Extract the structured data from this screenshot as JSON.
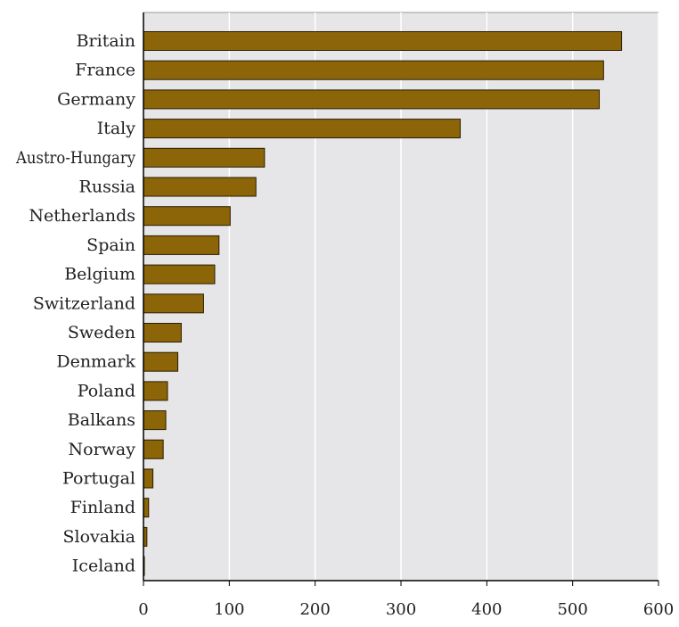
{
  "chart_data": {
    "type": "bar",
    "orientation": "horizontal",
    "categories": [
      "Britain",
      "France",
      "Germany",
      "Italy",
      "Austro-Hungary",
      "Russia",
      "Netherlands",
      "Spain",
      "Belgium",
      "Switzerland",
      "Sweden",
      "Denmark",
      "Poland",
      "Balkans",
      "Norway",
      "Portugal",
      "Finland",
      "Slovakia",
      "Iceland"
    ],
    "values": [
      557,
      536,
      531,
      369,
      141,
      131,
      101,
      88,
      83,
      70,
      44,
      40,
      28,
      26,
      23,
      11,
      6,
      4,
      1
    ],
    "xlim": [
      0,
      600
    ],
    "xticks": [
      0,
      100,
      200,
      300,
      400,
      500,
      600
    ],
    "title": "",
    "xlabel": "",
    "ylabel": "",
    "grid": "vertical",
    "legend": "none",
    "colors": {
      "bar_fill": "#8B6508",
      "bar_stroke": "#2a1d00",
      "plot_background": "#e6e6e8",
      "grid": "#ffffff",
      "axis": "#000000"
    }
  }
}
